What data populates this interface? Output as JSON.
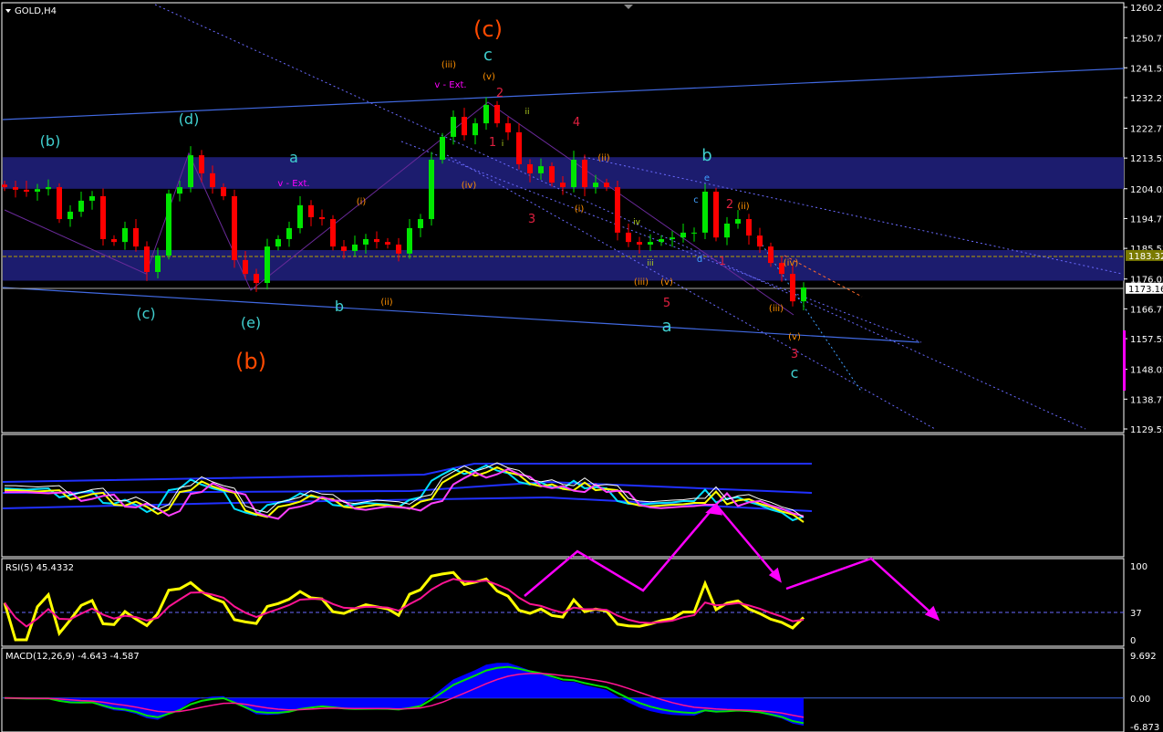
{
  "window": {
    "symbol_label": "GOLD,H4"
  },
  "colors": {
    "background": "#000000",
    "bull": "#00e600",
    "bear": "#ff0000",
    "zone": "#1c1c6e",
    "trend": "#4169e1",
    "rsi": "#ffff00",
    "signal": "#ff1493",
    "arrow": "#ff00ff",
    "macd_hist": "#0000ff"
  },
  "chart_data": [
    {
      "type": "candlestick",
      "title": "GOLD,H4",
      "ylim": [
        1129.52,
        1260.27
      ],
      "y_ticks": [
        "1260.27",
        "1250.77",
        "1241.52",
        "1232.27",
        "1222.77",
        "1213.52",
        "1204.02",
        "1194.77",
        "1185.52",
        "1176.02",
        "1166.77",
        "1157.52",
        "1148.02",
        "1138.77",
        "1129.52"
      ],
      "price_markers": {
        "bid": "1173.16",
        "level": "1183.32"
      },
      "zones": [
        [
          1204.0,
          1213.8
        ],
        [
          1175.5,
          1185.0
        ]
      ],
      "close": [
        1204.5,
        1203.7,
        1203.1,
        1203.9,
        1204.5,
        1194.6,
        1196.9,
        1200.3,
        1201.7,
        1188.4,
        1187.5,
        1191.8,
        1186.1,
        1178.2,
        1183.3,
        1202.5,
        1204.5,
        1214.4,
        1208.8,
        1204.5,
        1201.7,
        1181.9,
        1177.6,
        1174.8,
        1186.1,
        1188.4,
        1191.8,
        1198.9,
        1195.2,
        1194.6,
        1186.1,
        1184.7,
        1186.7,
        1188.4,
        1187.5,
        1186.7,
        1183.9,
        1191.8,
        1194.6,
        1213.0,
        1220.1,
        1226.3,
        1220.6,
        1224.3,
        1230.0,
        1224.3,
        1221.5,
        1211.6,
        1208.8,
        1211.0,
        1205.9,
        1204.5,
        1213.0,
        1204.5,
        1205.9,
        1204.5,
        1190.4,
        1187.5,
        1186.7,
        1187.5,
        1188.4,
        1188.9,
        1190.4,
        1190.4,
        1203.1,
        1188.9,
        1193.2,
        1194.6,
        1189.5,
        1186.1,
        1181.0,
        1177.6,
        1169.1,
        1173.4
      ],
      "wave_labels": [
        "(b)",
        "(d)",
        "(c)",
        "(e)",
        "(b)",
        "a",
        "b",
        "v - Ext.",
        "(c)",
        "c",
        "(iii)",
        "(v)",
        "v - Ext.",
        "2",
        "1",
        "4",
        "3",
        "b",
        "5",
        "a",
        "2",
        "(ii)",
        "(iv)",
        "(iii)",
        "(v)",
        "3",
        "c",
        "1",
        "(i)",
        "(ii)",
        "(iii)",
        "(v)",
        "(ii)",
        "(i)",
        "(iv)",
        "e",
        "c",
        "d",
        "iii",
        "iv",
        "ii",
        "i"
      ]
    },
    {
      "type": "line",
      "title": "RSI(5) 45.4332",
      "ylim": [
        0,
        100
      ],
      "y_ticks": [
        "100",
        "37",
        "0"
      ],
      "level": 37
    },
    {
      "type": "bar",
      "title": "MACD(12,26,9) -4.643 -4.587",
      "ylim": [
        -6.873,
        9.692
      ],
      "y_ticks": [
        "9.692",
        "0.00",
        "-6.873"
      ]
    }
  ]
}
